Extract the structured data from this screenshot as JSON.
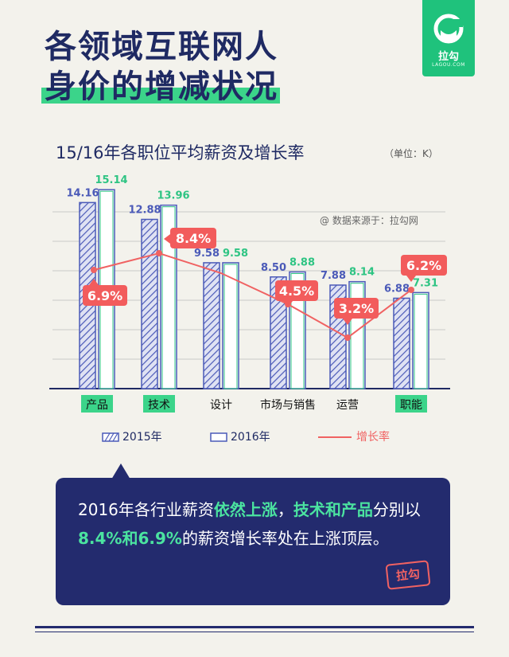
{
  "title": {
    "line1": "各领域互联网人",
    "line2": "身价的增减状况"
  },
  "logo": {
    "name": "拉勾",
    "sub": "LAGOU.COM"
  },
  "subtitle": "15/16年各职位平均薪资及增长率",
  "unit": "（单位：K）",
  "source": "@ 数据来源于：拉勾网",
  "colors": {
    "navy": "#1f2a63",
    "bar2015": "#4b5ab8",
    "bar2016": "#2ec483",
    "line": "#f06262",
    "label_bg": "#f25c5c",
    "highlight": "#3bd48a"
  },
  "chart_data": {
    "type": "bar",
    "categories": [
      "产品",
      "技术",
      "设计",
      "市场与销售",
      "运营",
      "职能"
    ],
    "highlighted_categories": [
      "产品",
      "技术",
      "职能"
    ],
    "series": [
      {
        "name": "2015年",
        "values": [
          14.16,
          12.88,
          9.58,
          8.5,
          7.88,
          6.88
        ]
      },
      {
        "name": "2016年",
        "values": [
          15.14,
          13.96,
          9.58,
          8.88,
          8.14,
          7.31
        ]
      }
    ],
    "value_labels": {
      "2015": [
        "14.16",
        "12.88",
        "9.58",
        "8.50",
        "7.88",
        "6.88"
      ],
      "2016": [
        "15.14",
        "13.96",
        "9.58",
        "8.88",
        "8.14",
        "7.31"
      ]
    },
    "growth_series": {
      "name": "增长率",
      "values": [
        6.9,
        8.4,
        0,
        4.5,
        3.2,
        6.2
      ],
      "labels": [
        "6.9%",
        "8.4%",
        "",
        "4.5%",
        "3.2%",
        "6.2%"
      ]
    },
    "grid": true,
    "legend_position": "bottom"
  },
  "legend": {
    "y2015": "2015年",
    "y2016": "2016年",
    "growth": "增长率"
  },
  "callout": {
    "p1": "2016年各行业薪资",
    "g1": "依然上涨",
    "p2": "，",
    "g2": "技术和产品",
    "p3": "分别以",
    "g3": "8.4%和6.9%",
    "p4": "的薪资增长率处在上涨顶层。",
    "stamp": "拉勾"
  }
}
